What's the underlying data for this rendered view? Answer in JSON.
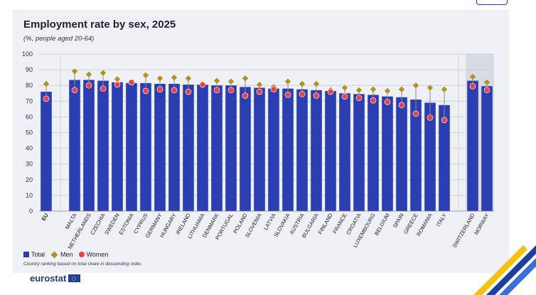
{
  "title": "Employment rate by sex, 2025",
  "subtitle": "(%, people aged 20-64)",
  "legend": {
    "total": "Total",
    "men": "Men",
    "women": "Women"
  },
  "note": "Country ranking based on total share in descending order.",
  "logo": "eurostat",
  "colors": {
    "total": "#2a3eb1",
    "men": "#b09324",
    "women": "#e8434a",
    "panel": "#eef0f6",
    "highlight": "#d9dbe3"
  },
  "chart_data": {
    "type": "bar",
    "ylim": [
      0,
      100
    ],
    "yticks": [
      0,
      10,
      20,
      30,
      40,
      50,
      60,
      70,
      80,
      90,
      100
    ],
    "grid": true,
    "legend_position": "bottom-left",
    "categories": [
      "EU",
      "MALTA",
      "NETHERLANDS",
      "CZECHIA",
      "SWEDEN",
      "ESTONIA",
      "CYPRUS",
      "GERMANY",
      "HUNGARY",
      "IRELAND",
      "LITHUANIA",
      "DENMARK",
      "PORTUGAL",
      "POLAND",
      "SLOVENIA",
      "LATVIA",
      "SLOVAKIA",
      "AUSTRIA",
      "BULGARIA",
      "FINLAND",
      "FRANCE",
      "CROATIA",
      "LUXEMBOURG",
      "BELGIUM",
      "SPAIN",
      "GREECE",
      "ROMANIA",
      "ITALY",
      "SWITZERLAND",
      "NORWAY"
    ],
    "groups": [
      1,
      27,
      2
    ],
    "series": [
      {
        "name": "Total",
        "mark": "bar",
        "values": [
          76,
          83.5,
          83.5,
          83,
          82,
          81.5,
          81.5,
          81,
          81,
          80.5,
          80.5,
          80,
          80,
          79,
          78.5,
          78,
          78,
          77.5,
          77,
          76.5,
          75,
          74.5,
          74,
          73,
          72.5,
          71,
          69,
          67.5,
          83,
          79.5
        ]
      },
      {
        "name": "Men",
        "mark": "diamond",
        "values": [
          81,
          89,
          87,
          88,
          84,
          82,
          86.5,
          84.5,
          85,
          84.5,
          80,
          83,
          82.5,
          84.5,
          80.5,
          79,
          82.5,
          81,
          81,
          77,
          78.5,
          77,
          77.5,
          76.5,
          77.5,
          80,
          78.5,
          77.5,
          85.5,
          82
        ]
      },
      {
        "name": "Women",
        "mark": "circle",
        "values": [
          71.5,
          77,
          80,
          78,
          80.5,
          82,
          76.5,
          77.5,
          77,
          76,
          80.5,
          77,
          77,
          73.5,
          76,
          77.5,
          74,
          74.5,
          73.5,
          76,
          73,
          72,
          70.5,
          69.5,
          67.5,
          62,
          59.5,
          58,
          79.5,
          77
        ]
      }
    ]
  }
}
